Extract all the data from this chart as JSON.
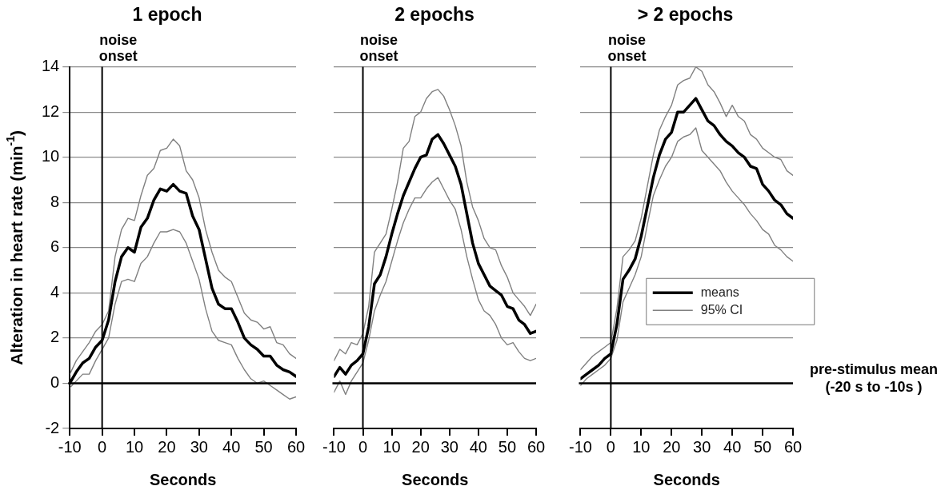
{
  "chart_data": [
    {
      "type": "line",
      "title": "1 epoch",
      "xlabel": "Seconds",
      "ylabel": "Alteration in heart rate (min$^{-1}$)",
      "x": [
        -10,
        -8,
        -6,
        -4,
        -2,
        0,
        2,
        4,
        6,
        8,
        10,
        12,
        14,
        16,
        18,
        20,
        22,
        24,
        26,
        28,
        30,
        32,
        34,
        36,
        38,
        40,
        42,
        44,
        46,
        48,
        50,
        52,
        54,
        56,
        58,
        60
      ],
      "series": [
        {
          "color": "#000000",
          "values": [
            0,
            0.5,
            0.9,
            1.1,
            1.6,
            1.9,
            2.8,
            4.5,
            5.6,
            6.0,
            5.8,
            6.9,
            7.3,
            8.1,
            8.6,
            8.5,
            8.8,
            8.5,
            8.4,
            7.4,
            6.8,
            5.5,
            4.2,
            3.5,
            3.3,
            3.3,
            2.7,
            2.0,
            1.7,
            1.5,
            1.2,
            1.2,
            0.8,
            0.6,
            0.5,
            0.3
          ]
        },
        {
          "color": "#808080",
          "values": [
            0.4,
            1.0,
            1.4,
            1.8,
            2.3,
            2.6,
            3.2,
            5.6,
            6.8,
            7.3,
            7.2,
            8.3,
            9.2,
            9.5,
            10.3,
            10.4,
            10.8,
            10.5,
            9.4,
            9.0,
            8.2,
            6.8,
            5.8,
            5.0,
            4.7,
            4.5,
            3.8,
            3.1,
            2.8,
            2.7,
            2.4,
            2.5,
            1.8,
            1.7,
            1.3,
            1.1
          ]
        },
        {
          "color": "#808080",
          "values": [
            -0.2,
            0.1,
            0.4,
            0.4,
            1.0,
            1.5,
            2.0,
            3.5,
            4.5,
            4.6,
            4.5,
            5.3,
            5.6,
            6.2,
            6.7,
            6.7,
            6.8,
            6.7,
            6.2,
            5.4,
            4.6,
            3.3,
            2.3,
            1.9,
            1.8,
            1.7,
            1.1,
            0.6,
            0.2,
            0.0,
            0.1,
            -0.1,
            -0.3,
            -0.5,
            -0.7,
            -0.6
          ]
        }
      ],
      "xlim": [
        -10,
        60
      ],
      "xticks": [
        -10,
        0,
        10,
        20,
        30,
        40,
        50,
        60
      ],
      "ylim": [
        -2,
        14
      ],
      "yticks": [
        -2,
        0,
        2,
        4,
        6,
        8,
        10,
        12,
        14
      ],
      "grid": "y",
      "legend": false,
      "ref_lines": [
        {
          "axis": "x",
          "value": 0,
          "label": "noise onset"
        },
        {
          "axis": "y",
          "value": 0
        }
      ]
    },
    {
      "type": "line",
      "title": "2 epochs",
      "xlabel": "Seconds",
      "x": [
        -10,
        -8,
        -6,
        -4,
        -2,
        0,
        2,
        4,
        6,
        8,
        10,
        12,
        14,
        16,
        18,
        20,
        22,
        24,
        26,
        28,
        30,
        32,
        34,
        36,
        38,
        40,
        42,
        44,
        46,
        48,
        50,
        52,
        54,
        56,
        58,
        60
      ],
      "series": [
        {
          "color": "#000000",
          "values": [
            0.3,
            0.7,
            0.4,
            0.8,
            1.0,
            1.3,
            2.5,
            4.4,
            4.8,
            5.6,
            6.6,
            7.5,
            8.3,
            8.9,
            9.5,
            10.0,
            10.1,
            10.8,
            11.0,
            10.6,
            10.1,
            9.6,
            8.8,
            7.5,
            6.2,
            5.3,
            4.8,
            4.3,
            4.1,
            3.9,
            3.4,
            3.3,
            2.8,
            2.6,
            2.2,
            2.3
          ]
        },
        {
          "color": "#808080",
          "values": [
            1.0,
            1.5,
            1.3,
            1.8,
            1.7,
            2.2,
            3.4,
            5.8,
            6.2,
            6.6,
            7.7,
            8.9,
            10.4,
            10.7,
            11.8,
            12.0,
            12.6,
            12.9,
            13.0,
            12.7,
            12.1,
            11.4,
            10.5,
            8.9,
            7.8,
            7.2,
            6.4,
            6.0,
            5.9,
            5.2,
            4.7,
            4.0,
            3.7,
            3.4,
            3.0,
            3.5
          ]
        },
        {
          "color": "#808080",
          "values": [
            -0.4,
            0.1,
            -0.5,
            0.1,
            0.5,
            0.9,
            1.9,
            3.2,
            3.9,
            4.5,
            5.4,
            6.3,
            7.1,
            7.7,
            8.2,
            8.2,
            8.6,
            8.9,
            9.1,
            8.6,
            8.1,
            7.7,
            6.8,
            5.6,
            4.6,
            3.7,
            3.2,
            3.0,
            2.6,
            2.0,
            1.7,
            1.8,
            1.4,
            1.1,
            1.0,
            1.1
          ]
        }
      ],
      "xlim": [
        -10,
        60
      ],
      "xticks": [
        -10,
        0,
        10,
        20,
        30,
        40,
        50,
        60
      ],
      "ylim": [
        -2,
        14
      ],
      "yticks": [
        -2,
        0,
        2,
        4,
        6,
        8,
        10,
        12,
        14
      ],
      "grid": "y",
      "legend": false,
      "tick_labels": "x",
      "ref_lines": [
        {
          "axis": "x",
          "value": 0,
          "label": "noise onset"
        },
        {
          "axis": "y",
          "value": 0
        }
      ]
    },
    {
      "type": "line",
      "title": "> 2 epochs",
      "xlabel": "Seconds",
      "x": [
        -10,
        -8,
        -6,
        -4,
        -2,
        0,
        2,
        4,
        6,
        8,
        10,
        12,
        14,
        16,
        18,
        20,
        22,
        24,
        26,
        28,
        30,
        32,
        34,
        36,
        38,
        40,
        42,
        44,
        46,
        48,
        50,
        52,
        54,
        56,
        58,
        60
      ],
      "series": [
        {
          "name": "means",
          "color": "#000000",
          "values": [
            0.2,
            0.4,
            0.6,
            0.8,
            1.1,
            1.3,
            2.6,
            4.6,
            5.0,
            5.5,
            6.5,
            7.8,
            9.1,
            10.1,
            10.8,
            11.1,
            12.0,
            12.0,
            12.3,
            12.6,
            12.1,
            11.6,
            11.4,
            11.0,
            10.7,
            10.5,
            10.2,
            10.0,
            9.6,
            9.5,
            8.8,
            8.5,
            8.1,
            7.9,
            7.5,
            7.3
          ]
        },
        {
          "name": "95% CI",
          "color": "#808080",
          "values": [
            0.6,
            0.9,
            1.2,
            1.4,
            1.6,
            1.8,
            3.3,
            5.6,
            5.9,
            6.3,
            7.3,
            8.7,
            10.1,
            11.2,
            11.8,
            12.3,
            13.2,
            13.4,
            13.5,
            14.0,
            13.8,
            13.2,
            12.9,
            12.4,
            11.8,
            12.3,
            11.8,
            11.6,
            11.0,
            10.8,
            10.4,
            10.2,
            10.0,
            9.9,
            9.4,
            9.2
          ]
        },
        {
          "color": "#808080",
          "values": [
            -0.1,
            0.2,
            0.4,
            0.6,
            0.8,
            1.1,
            1.9,
            3.6,
            4.2,
            4.8,
            5.6,
            7.0,
            8.3,
            9.0,
            9.6,
            10.0,
            10.7,
            10.9,
            11.0,
            11.3,
            10.3,
            10.0,
            9.7,
            9.4,
            8.9,
            8.5,
            8.2,
            7.9,
            7.5,
            7.2,
            6.8,
            6.6,
            6.1,
            5.9,
            5.6,
            5.4
          ]
        }
      ],
      "xlim": [
        -10,
        60
      ],
      "xticks": [
        -10,
        0,
        10,
        20,
        30,
        40,
        50,
        60
      ],
      "ylim": [
        -2,
        14
      ],
      "yticks": [
        -2,
        0,
        2,
        4,
        6,
        8,
        10,
        12,
        14
      ],
      "grid": "y",
      "legend": "right",
      "tick_labels": "x",
      "ref_lines": [
        {
          "axis": "x",
          "value": 0,
          "label": "noise onset"
        },
        {
          "axis": "y",
          "value": 0,
          "label": "pre-stimulus mean (-20 s to -10s )"
        }
      ]
    }
  ]
}
